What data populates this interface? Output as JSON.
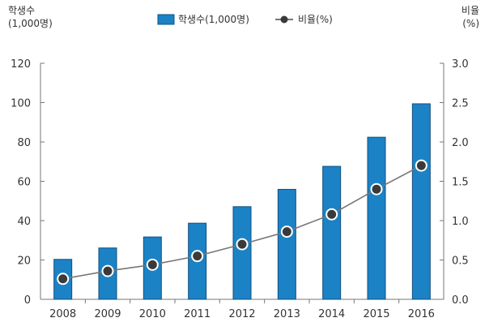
{
  "chart_data": {
    "type": "bar",
    "categories": [
      "2008",
      "2009",
      "2010",
      "2011",
      "2012",
      "2013",
      "2014",
      "2015",
      "2016"
    ],
    "series": [
      {
        "name": "학생수(1,000명)",
        "type": "bar",
        "axis": "left",
        "values": [
          20.3,
          26.1,
          31.7,
          38.7,
          47.1,
          55.9,
          67.6,
          82.4,
          99.4
        ]
      },
      {
        "name": "비율(%)",
        "type": "line",
        "axis": "right",
        "values": [
          0.26,
          0.36,
          0.44,
          0.55,
          0.7,
          0.86,
          1.08,
          1.4,
          1.7
        ]
      }
    ],
    "left_axis": {
      "title_line1": "학생수",
      "title_line2": "(1,000명)",
      "range": [
        0,
        120
      ],
      "ticks": [
        "0",
        "20",
        "40",
        "60",
        "80",
        "100",
        "120"
      ]
    },
    "right_axis": {
      "title_line1": "비율",
      "title_line2": "(%)",
      "range": [
        0,
        3.0
      ],
      "ticks": [
        "0.0",
        "0.5",
        "1.0",
        "1.5",
        "2.0",
        "2.5",
        "3.0"
      ]
    },
    "legend": {
      "placement": "top-center",
      "bar_label": "학생수(1,000명)",
      "line_label": "비율(%)"
    },
    "grid": false,
    "colors": {
      "bar_fill": "#1b82c5",
      "bar_stroke": "#12507f",
      "line": "#777777",
      "marker": "#3a3a3a",
      "axis": "#777777"
    }
  }
}
